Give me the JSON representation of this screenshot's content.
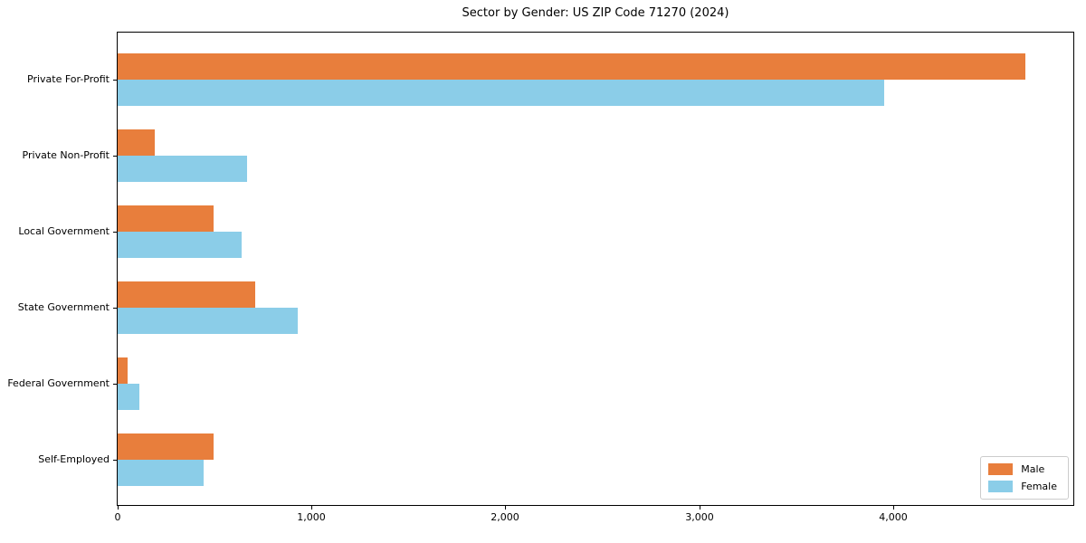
{
  "chart_data": {
    "type": "bar",
    "orientation": "horizontal",
    "title": "Sector by Gender: US ZIP Code 71270 (2024)",
    "categories": [
      "Private For-Profit",
      "Private Non-Profit",
      "Local Government",
      "State Government",
      "Federal Government",
      "Self-Employed"
    ],
    "series": [
      {
        "name": "Male",
        "color": "#e87e3c",
        "values": [
          4680,
          190,
          495,
          710,
          50,
          495
        ]
      },
      {
        "name": "Female",
        "color": "#8bcde8",
        "values": [
          3950,
          665,
          640,
          930,
          110,
          445
        ]
      }
    ],
    "xlim": [
      0,
      4925
    ],
    "xticks": {
      "values": [
        0,
        1000,
        2000,
        3000,
        4000
      ],
      "labels": [
        "0",
        "1,000",
        "2,000",
        "3,000",
        "4,000"
      ]
    },
    "xlabel": "",
    "ylabel": "",
    "grid": false,
    "legend_position": "lower right",
    "colors": {
      "spine": "#000000",
      "text": "#000000",
      "legend_border": "#cccccc",
      "background": "#ffffff"
    }
  }
}
